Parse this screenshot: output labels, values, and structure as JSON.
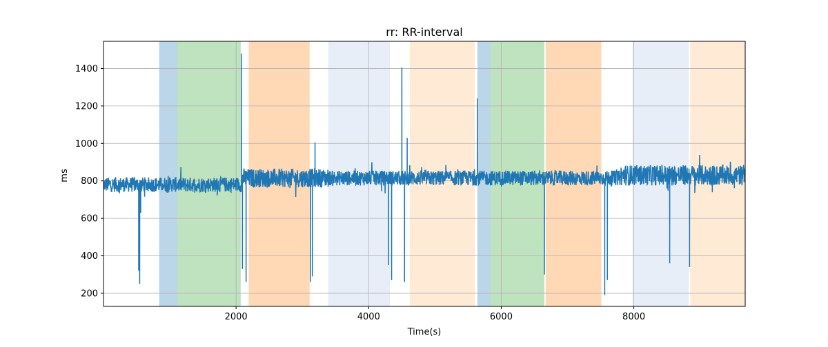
{
  "chart_data": {
    "type": "line",
    "title": "rr: RR-interval",
    "xlabel": "Time(s)",
    "ylabel": "ms",
    "xlim": [
      0,
      9680
    ],
    "ylim": [
      130,
      1545
    ],
    "xticks": [
      2000,
      4000,
      6000,
      8000
    ],
    "yticks": [
      200,
      400,
      600,
      800,
      1000,
      1200,
      1400
    ],
    "grid": true,
    "series_color": "#1f77b4",
    "bands": [
      {
        "start": 840,
        "end": 1115,
        "color": "#1f77b4",
        "opacity": 0.3
      },
      {
        "start": 1115,
        "end": 2070,
        "color": "#2ca02c",
        "opacity": 0.3
      },
      {
        "start": 2190,
        "end": 3110,
        "color": "#ff7f0e",
        "opacity": 0.3
      },
      {
        "start": 3390,
        "end": 4320,
        "color": "#aec7e8",
        "opacity": 0.3
      },
      {
        "start": 4620,
        "end": 5600,
        "color": "#ffbb78",
        "opacity": 0.3
      },
      {
        "start": 5640,
        "end": 5840,
        "color": "#1f77b4",
        "opacity": 0.3
      },
      {
        "start": 5840,
        "end": 6650,
        "color": "#2ca02c",
        "opacity": 0.3
      },
      {
        "start": 6670,
        "end": 7510,
        "color": "#ff7f0e",
        "opacity": 0.3
      },
      {
        "start": 7980,
        "end": 8830,
        "color": "#aec7e8",
        "opacity": 0.3
      },
      {
        "start": 8850,
        "end": 9680,
        "color": "#ffbb78",
        "opacity": 0.3
      }
    ],
    "baseline_segments": [
      {
        "start": 0,
        "end": 2100,
        "mean": 780,
        "amp": 40
      },
      {
        "start": 2100,
        "end": 3400,
        "mean": 815,
        "amp": 50
      },
      {
        "start": 3400,
        "end": 7800,
        "mean": 815,
        "amp": 40
      },
      {
        "start": 7800,
        "end": 9680,
        "mean": 830,
        "amp": 55
      }
    ],
    "spikes": [
      {
        "x": 530,
        "y": 320
      },
      {
        "x": 545,
        "y": 250
      },
      {
        "x": 560,
        "y": 630
      },
      {
        "x": 2080,
        "y": 1480
      },
      {
        "x": 2095,
        "y": 330
      },
      {
        "x": 2150,
        "y": 260
      },
      {
        "x": 3120,
        "y": 260
      },
      {
        "x": 3150,
        "y": 290
      },
      {
        "x": 3190,
        "y": 1005
      },
      {
        "x": 4300,
        "y": 350
      },
      {
        "x": 4345,
        "y": 270
      },
      {
        "x": 4500,
        "y": 1405
      },
      {
        "x": 4540,
        "y": 260
      },
      {
        "x": 4580,
        "y": 1030
      },
      {
        "x": 5640,
        "y": 1240
      },
      {
        "x": 6650,
        "y": 300
      },
      {
        "x": 7560,
        "y": 190
      },
      {
        "x": 7600,
        "y": 270
      },
      {
        "x": 8540,
        "y": 360
      },
      {
        "x": 8840,
        "y": 340
      }
    ]
  }
}
